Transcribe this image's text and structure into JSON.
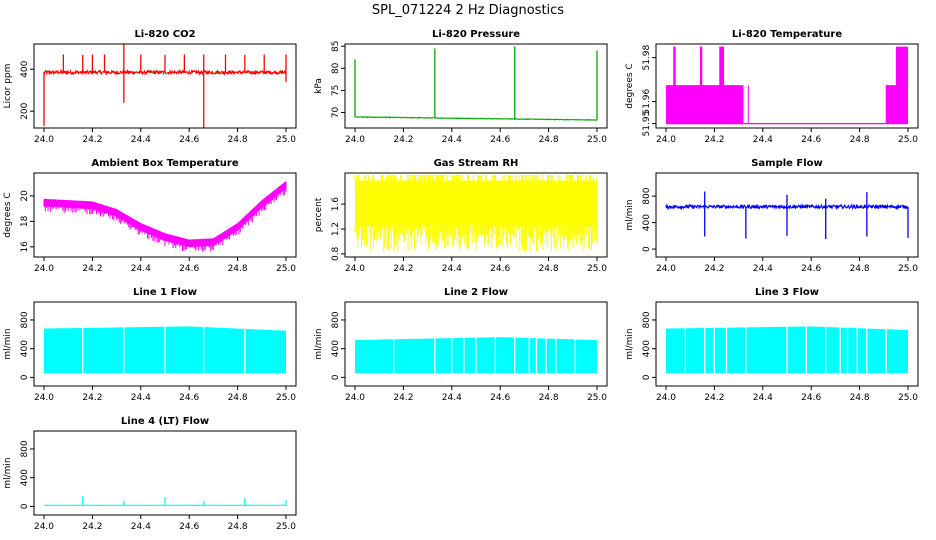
{
  "title": "SPL_071224  2 Hz Diagnostics",
  "chart_data": [
    {
      "type": "line",
      "title": "Li-820 CO2",
      "ylabel": "Licor ppm",
      "color": "#ff0000",
      "xlim": [
        24.0,
        25.0
      ],
      "ylim": [
        120,
        520
      ],
      "xticks": [
        "24.0",
        "24.2",
        "24.4",
        "24.6",
        "24.8",
        "25.0"
      ],
      "yticks": [
        "200",
        "400"
      ],
      "pattern": "spiky",
      "base": 385,
      "noise": 8,
      "spikes_up": [
        [
          24.08,
          470
        ],
        [
          24.16,
          468
        ],
        [
          24.2,
          470
        ],
        [
          24.25,
          470
        ],
        [
          24.33,
          520
        ],
        [
          24.4,
          470
        ],
        [
          24.5,
          468
        ],
        [
          24.58,
          470
        ],
        [
          24.66,
          470
        ],
        [
          24.75,
          470
        ],
        [
          24.83,
          468
        ],
        [
          24.91,
          470
        ],
        [
          25.0,
          470
        ]
      ],
      "spikes_down": [
        [
          24.0,
          130
        ],
        [
          24.33,
          240
        ],
        [
          24.66,
          120
        ],
        [
          25.0,
          340
        ]
      ]
    },
    {
      "type": "line",
      "title": "Li-820 Pressure",
      "ylabel": "kPa",
      "color": "#00aa00",
      "xlim": [
        24.0,
        25.0
      ],
      "ylim": [
        66.5,
        85.5
      ],
      "xticks": [
        "24.0",
        "24.2",
        "24.4",
        "24.6",
        "24.8",
        "25.0"
      ],
      "yticks": [
        "70",
        "75",
        "80",
        "85"
      ],
      "pattern": "flat",
      "start": 69.0,
      "end": 68.3,
      "noise": 0.15,
      "spikes_up": [
        [
          24.0,
          82
        ],
        [
          24.33,
          84.5
        ],
        [
          24.66,
          85
        ],
        [
          25.0,
          84
        ]
      ],
      "spikes_down": []
    },
    {
      "type": "line",
      "title": "Li-820 Temperature",
      "ylabel": "degrees C",
      "color": "#ff00ff",
      "xlim": [
        24.0,
        25.0
      ],
      "ylim": [
        51.948,
        51.9862
      ],
      "xticks": [
        "24.0",
        "24.2",
        "24.4",
        "24.6",
        "24.8",
        "25.0"
      ],
      "yticks": [
        "51.95",
        "51.96",
        "51.98"
      ],
      "pattern": "step",
      "low": 51.95,
      "mid": 51.9675,
      "high": 51.985,
      "blocks": [
        [
          24.0,
          24.32,
          "mid"
        ],
        [
          24.03,
          24.04,
          "high"
        ],
        [
          24.14,
          24.15,
          "high"
        ],
        [
          24.22,
          24.24,
          "high"
        ],
        [
          24.91,
          24.95,
          "mid"
        ],
        [
          24.95,
          25.0,
          "high"
        ]
      ]
    },
    {
      "type": "line",
      "title": "Ambient Box Temperature",
      "ylabel": "degrees C",
      "color": "#ff00ff",
      "xlim": [
        24.0,
        25.0
      ],
      "ylim": [
        15.2,
        21.8
      ],
      "xticks": [
        "24.0",
        "24.2",
        "24.4",
        "24.6",
        "24.8",
        "25.0"
      ],
      "yticks": [
        "16",
        "18",
        "20"
      ],
      "pattern": "curve",
      "curve": [
        [
          24.0,
          19.5
        ],
        [
          24.1,
          19.4
        ],
        [
          24.2,
          19.3
        ],
        [
          24.3,
          18.7
        ],
        [
          24.4,
          17.6
        ],
        [
          24.5,
          16.8
        ],
        [
          24.6,
          16.3
        ],
        [
          24.7,
          16.4
        ],
        [
          24.8,
          17.6
        ],
        [
          24.9,
          19.4
        ],
        [
          25.0,
          20.9
        ]
      ],
      "noise": 0.6
    },
    {
      "type": "line",
      "title": "Gas Stream RH",
      "ylabel": "percent",
      "color": "#ffff00",
      "xlim": [
        24.0,
        25.0
      ],
      "ylim": [
        0.75,
        2.1
      ],
      "xticks": [
        "24.0",
        "24.2",
        "24.4",
        "24.6",
        "24.8",
        "25.0"
      ],
      "yticks": [
        "0.8",
        "1.2",
        "1.6"
      ],
      "pattern": "band",
      "top": 1.98,
      "bottom": 1.25,
      "spike_top": 2.07,
      "spike_bottom": 0.83
    },
    {
      "type": "line",
      "title": "Sample Flow",
      "ylabel": "ml/min",
      "color": "#0000ff",
      "xlim": [
        24.0,
        25.0
      ],
      "ylim": [
        -120,
        1150
      ],
      "xticks": [
        "24.0",
        "24.2",
        "24.4",
        "24.6",
        "24.8",
        "25.0"
      ],
      "yticks": [
        "0",
        "400",
        "800"
      ],
      "pattern": "spiky",
      "base": 640,
      "noise": 25,
      "spikes_up": [
        [
          24.16,
          870
        ],
        [
          24.5,
          820
        ],
        [
          24.66,
          760
        ],
        [
          24.83,
          860
        ]
      ],
      "spikes_down": [
        [
          24.16,
          190
        ],
        [
          24.33,
          160
        ],
        [
          24.5,
          200
        ],
        [
          24.66,
          150
        ],
        [
          24.83,
          190
        ],
        [
          25.0,
          170
        ]
      ]
    },
    {
      "type": "line",
      "title": "Line 1 Flow",
      "ylabel": "ml/min",
      "color": "#00ffff",
      "xlim": [
        24.0,
        25.0
      ],
      "ylim": [
        -120,
        1050
      ],
      "xticks": [
        "24.0",
        "24.2",
        "24.4",
        "24.6",
        "24.8",
        "25.0"
      ],
      "yticks": [
        "0",
        "400",
        "800"
      ],
      "pattern": "block",
      "top_start": 680,
      "top_mid": 710,
      "top_end": 650,
      "bottom": 60,
      "gaps": [
        24.16,
        24.33,
        24.5,
        24.66,
        24.83
      ]
    },
    {
      "type": "line",
      "title": "Line 2 Flow",
      "ylabel": "ml/min",
      "color": "#00ffff",
      "xlim": [
        24.0,
        25.0
      ],
      "ylim": [
        -120,
        1050
      ],
      "xticks": [
        "24.0",
        "24.2",
        "24.4",
        "24.6",
        "24.8",
        "25.0"
      ],
      "yticks": [
        "0",
        "400",
        "800"
      ],
      "pattern": "block",
      "top_start": 520,
      "top_mid": 560,
      "top_end": 520,
      "bottom": 60,
      "gaps": [
        24.16,
        24.33,
        24.4,
        24.45,
        24.5,
        24.58,
        24.66,
        24.72,
        24.75,
        24.79,
        24.83,
        24.91
      ]
    },
    {
      "type": "line",
      "title": "Line 3 Flow",
      "ylabel": "ml/min",
      "color": "#00ffff",
      "xlim": [
        24.0,
        25.0
      ],
      "ylim": [
        -120,
        1050
      ],
      "xticks": [
        "24.0",
        "24.2",
        "24.4",
        "24.6",
        "24.8",
        "25.0"
      ],
      "yticks": [
        "0",
        "400",
        "800"
      ],
      "pattern": "block",
      "top_start": 680,
      "top_mid": 710,
      "top_end": 660,
      "bottom": 60,
      "gaps": [
        24.08,
        24.16,
        24.2,
        24.25,
        24.33,
        24.5,
        24.58,
        24.66,
        24.72,
        24.75,
        24.79,
        24.83,
        24.91
      ]
    },
    {
      "type": "line",
      "title": "Line 4 (LT) Flow",
      "ylabel": "ml/min",
      "color": "#00ffff",
      "xlim": [
        24.0,
        25.0
      ],
      "ylim": [
        -120,
        1050
      ],
      "xticks": [
        "24.0",
        "24.2",
        "24.4",
        "24.6",
        "24.8",
        "25.0"
      ],
      "yticks": [
        "0",
        "400",
        "800"
      ],
      "pattern": "spiky",
      "base": 15,
      "noise": 2,
      "spikes_up": [
        [
          24.16,
          140
        ],
        [
          24.33,
          80
        ],
        [
          24.5,
          130
        ],
        [
          24.66,
          75
        ],
        [
          24.83,
          120
        ],
        [
          25.0,
          90
        ]
      ],
      "spikes_down": []
    }
  ]
}
